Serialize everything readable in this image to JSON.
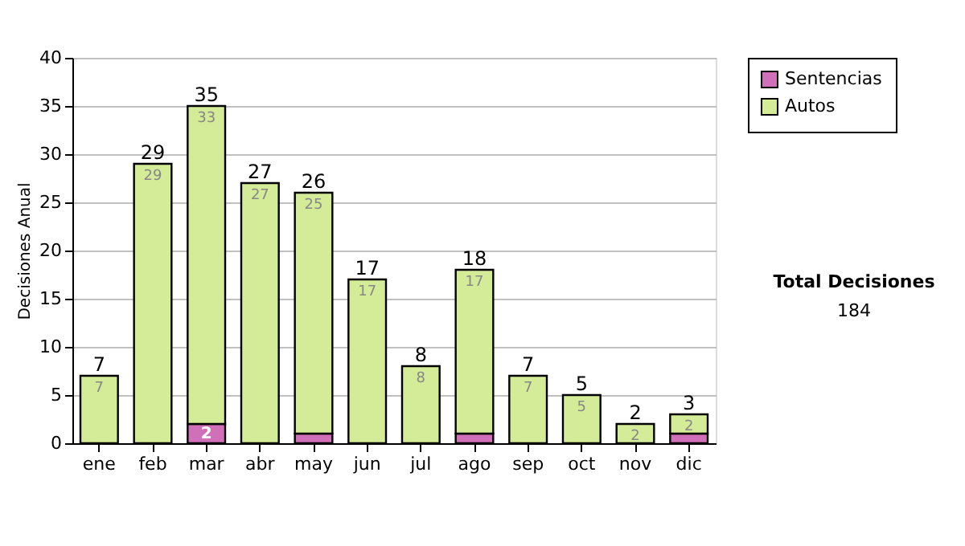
{
  "chart_data": {
    "type": "bar",
    "stacked": true,
    "ylabel": "Decisiones Anual",
    "categories": [
      "ene",
      "feb",
      "mar",
      "abr",
      "may",
      "jun",
      "jul",
      "ago",
      "sep",
      "oct",
      "nov",
      "dic"
    ],
    "series": [
      {
        "name": "Sentencias",
        "color": "#d070b8",
        "values": [
          0,
          0,
          2,
          0,
          1,
          0,
          0,
          1,
          0,
          0,
          0,
          1
        ],
        "value_labels": [
          null,
          null,
          "2",
          null,
          null,
          null,
          null,
          null,
          null,
          null,
          null,
          null
        ]
      },
      {
        "name": "Autos",
        "color": "#d4eb98",
        "values": [
          7,
          29,
          33,
          27,
          25,
          17,
          8,
          17,
          7,
          5,
          2,
          2
        ],
        "value_labels": [
          "7",
          "29",
          "33",
          "27",
          "25",
          "17",
          "8",
          "17",
          "7",
          "5",
          "2",
          "2"
        ]
      }
    ],
    "totals": [
      "7",
      "29",
      "35",
      "27",
      "26",
      "17",
      "8",
      "18",
      "7",
      "5",
      "2",
      "3"
    ],
    "ylim": [
      0,
      40
    ],
    "yticks": [
      0,
      5,
      10,
      15,
      20,
      25,
      30,
      35,
      40
    ],
    "grid": "y",
    "legend": "right",
    "annotations": [
      "Total Decisiones",
      "184"
    ]
  }
}
